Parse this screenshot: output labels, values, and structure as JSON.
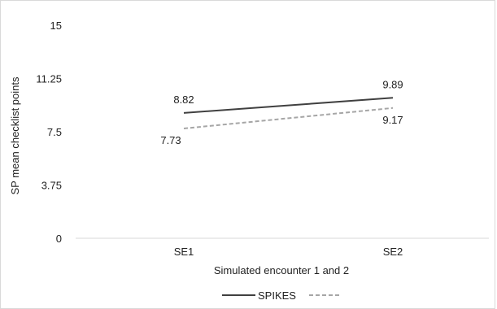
{
  "chart_data": {
    "type": "line",
    "title": "",
    "xlabel": "Simulated encounter 1 and 2",
    "ylabel": "SP mean checklist points",
    "categories": [
      "SE1",
      "SE2"
    ],
    "ylim": [
      0,
      15
    ],
    "yticks": [
      0,
      3.75,
      7.5,
      11.25,
      15
    ],
    "ytick_labels": [
      "0",
      "3.75",
      "7.5",
      "11.25",
      "15"
    ],
    "grid": false,
    "legend_position": "bottom",
    "series": [
      {
        "name": "SPIKES",
        "values": [
          8.82,
          9.89
        ],
        "value_labels": [
          "8.82",
          "9.89"
        ],
        "color": "#404040",
        "dash": "solid"
      },
      {
        "name": "",
        "values": [
          7.73,
          9.17
        ],
        "value_labels": [
          "7.73",
          "9.17"
        ],
        "color": "#a6a6a6",
        "dash": "dashed"
      }
    ]
  }
}
